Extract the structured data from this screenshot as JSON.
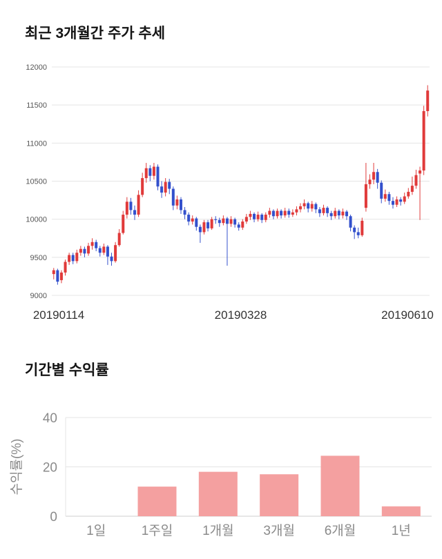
{
  "accent_colors": {
    "candle_up": "#e03a3a",
    "candle_down": "#3350cc",
    "bar_fill": "#f4a0a0",
    "grid": "#e4e4e4",
    "axis_text_small": "#555555",
    "axis_text_dates": "#333333",
    "axis_text_gray": "#8a8a8a"
  },
  "chart_data": [
    {
      "type": "candlestick",
      "title": "최근 3개월간 주가 추세",
      "ylim": [
        9000,
        12000
      ],
      "yticks": [
        9000,
        9500,
        10000,
        10500,
        11000,
        11500,
        12000
      ],
      "xticks": [
        "20190114",
        "20190328",
        "20190610"
      ],
      "grid": true,
      "up_color": "#e03a3a",
      "down_color": "#3350cc",
      "candles_format": [
        "open",
        "close",
        "low",
        "high"
      ],
      "candles": [
        [
          9280,
          9330,
          9210,
          9360
        ],
        [
          9330,
          9180,
          9140,
          9350
        ],
        [
          9200,
          9300,
          9160,
          9330
        ],
        [
          9300,
          9440,
          9260,
          9470
        ],
        [
          9440,
          9530,
          9400,
          9560
        ],
        [
          9530,
          9450,
          9410,
          9560
        ],
        [
          9450,
          9560,
          9420,
          9600
        ],
        [
          9560,
          9610,
          9520,
          9650
        ],
        [
          9610,
          9550,
          9500,
          9640
        ],
        [
          9550,
          9650,
          9520,
          9690
        ],
        [
          9650,
          9700,
          9600,
          9750
        ],
        [
          9700,
          9620,
          9580,
          9730
        ],
        [
          9620,
          9560,
          9510,
          9650
        ],
        [
          9560,
          9640,
          9530,
          9680
        ],
        [
          9640,
          9510,
          9400,
          9660
        ],
        [
          9510,
          9450,
          9390,
          9560
        ],
        [
          9450,
          9660,
          9430,
          9700
        ],
        [
          9660,
          9820,
          9640,
          9870
        ],
        [
          9820,
          10060,
          9800,
          10110
        ],
        [
          10060,
          10230,
          10010,
          10290
        ],
        [
          10230,
          10120,
          10060,
          10280
        ],
        [
          10120,
          10060,
          9990,
          10180
        ],
        [
          10060,
          10320,
          10030,
          10380
        ],
        [
          10320,
          10540,
          10290,
          10610
        ],
        [
          10540,
          10670,
          10480,
          10740
        ],
        [
          10670,
          10570,
          10500,
          10710
        ],
        [
          10570,
          10690,
          10520,
          10740
        ],
        [
          10690,
          10430,
          10380,
          10720
        ],
        [
          10430,
          10350,
          10280,
          10500
        ],
        [
          10350,
          10490,
          10300,
          10540
        ],
        [
          10490,
          10400,
          10330,
          10530
        ],
        [
          10400,
          10180,
          10120,
          10430
        ],
        [
          10180,
          10260,
          10130,
          10310
        ],
        [
          10260,
          10120,
          10070,
          10290
        ],
        [
          10120,
          10060,
          10000,
          10160
        ],
        [
          10060,
          9970,
          9920,
          10090
        ],
        [
          9970,
          10010,
          9930,
          10050
        ],
        [
          10010,
          9900,
          9850,
          10030
        ],
        [
          9900,
          9830,
          9690,
          9930
        ],
        [
          9830,
          9960,
          9800,
          9990
        ],
        [
          9960,
          9880,
          9840,
          9990
        ],
        [
          9880,
          10000,
          9860,
          10030
        ],
        [
          10000,
          9990,
          9940,
          10040
        ],
        [
          9990,
          9950,
          9900,
          10020
        ],
        [
          9950,
          10010,
          9920,
          10050
        ],
        [
          10010,
          9940,
          9390,
          10030
        ],
        [
          9940,
          10000,
          9900,
          10040
        ],
        [
          10000,
          9930,
          9890,
          10020
        ],
        [
          9930,
          9890,
          9850,
          9960
        ],
        [
          9890,
          9970,
          9860,
          10000
        ],
        [
          9970,
          10030,
          9940,
          10070
        ],
        [
          10030,
          10070,
          9990,
          10110
        ],
        [
          10070,
          10000,
          9960,
          10090
        ],
        [
          10000,
          10060,
          9970,
          10100
        ],
        [
          10060,
          9990,
          9950,
          10080
        ],
        [
          9990,
          10060,
          9960,
          10090
        ],
        [
          10060,
          10110,
          10020,
          10150
        ],
        [
          10110,
          10040,
          10000,
          10130
        ],
        [
          10040,
          10110,
          10010,
          10140
        ],
        [
          10110,
          10050,
          10010,
          10130
        ],
        [
          10050,
          10110,
          10020,
          10150
        ],
        [
          10110,
          10060,
          10020,
          10140
        ],
        [
          10060,
          10090,
          10030,
          10130
        ],
        [
          10090,
          10130,
          10050,
          10170
        ],
        [
          10130,
          10170,
          10090,
          10210
        ],
        [
          10170,
          10210,
          10130,
          10260
        ],
        [
          10210,
          10140,
          10090,
          10230
        ],
        [
          10140,
          10200,
          10100,
          10240
        ],
        [
          10200,
          10130,
          10080,
          10220
        ],
        [
          10130,
          10080,
          10030,
          10160
        ],
        [
          10080,
          10150,
          10050,
          10190
        ],
        [
          10150,
          10080,
          10030,
          10170
        ],
        [
          10080,
          10040,
          9990,
          10110
        ],
        [
          10040,
          10110,
          10010,
          10150
        ],
        [
          10110,
          10050,
          10000,
          10130
        ],
        [
          10050,
          10100,
          10010,
          10140
        ],
        [
          10100,
          10040,
          9990,
          10120
        ],
        [
          10040,
          9890,
          9840,
          10060
        ],
        [
          9890,
          9830,
          9740,
          9920
        ],
        [
          9830,
          9790,
          9750,
          9890
        ],
        [
          9790,
          9980,
          9770,
          10020
        ],
        [
          10150,
          10460,
          10100,
          10740
        ],
        [
          10460,
          10520,
          10400,
          10590
        ],
        [
          10520,
          10620,
          10460,
          10740
        ],
        [
          10620,
          10480,
          10400,
          10660
        ],
        [
          10480,
          10270,
          10210,
          10510
        ],
        [
          10270,
          10330,
          10230,
          10390
        ],
        [
          10330,
          10240,
          10190,
          10360
        ],
        [
          10240,
          10190,
          10140,
          10290
        ],
        [
          10190,
          10260,
          10160,
          10300
        ],
        [
          10260,
          10230,
          10180,
          10290
        ],
        [
          10230,
          10300,
          10200,
          10350
        ],
        [
          10300,
          10360,
          10270,
          10410
        ],
        [
          10360,
          10440,
          10320,
          10560
        ],
        [
          10440,
          10580,
          10400,
          10650
        ],
        [
          10600,
          10640,
          9990,
          10690
        ],
        [
          10640,
          11420,
          10580,
          11490
        ],
        [
          11420,
          11690,
          11350,
          11760
        ]
      ]
    },
    {
      "type": "bar",
      "title": "기간별 수익률",
      "categories": [
        "1일",
        "1주일",
        "1개월",
        "3개월",
        "6개월",
        "1년"
      ],
      "values": [
        0,
        12,
        18,
        17,
        24.5,
        4
      ],
      "ylabel": "수익률(%)",
      "ylim": [
        0,
        40
      ],
      "yticks": [
        0,
        20,
        40
      ],
      "grid": true,
      "bar_color": "#f4a0a0"
    }
  ]
}
